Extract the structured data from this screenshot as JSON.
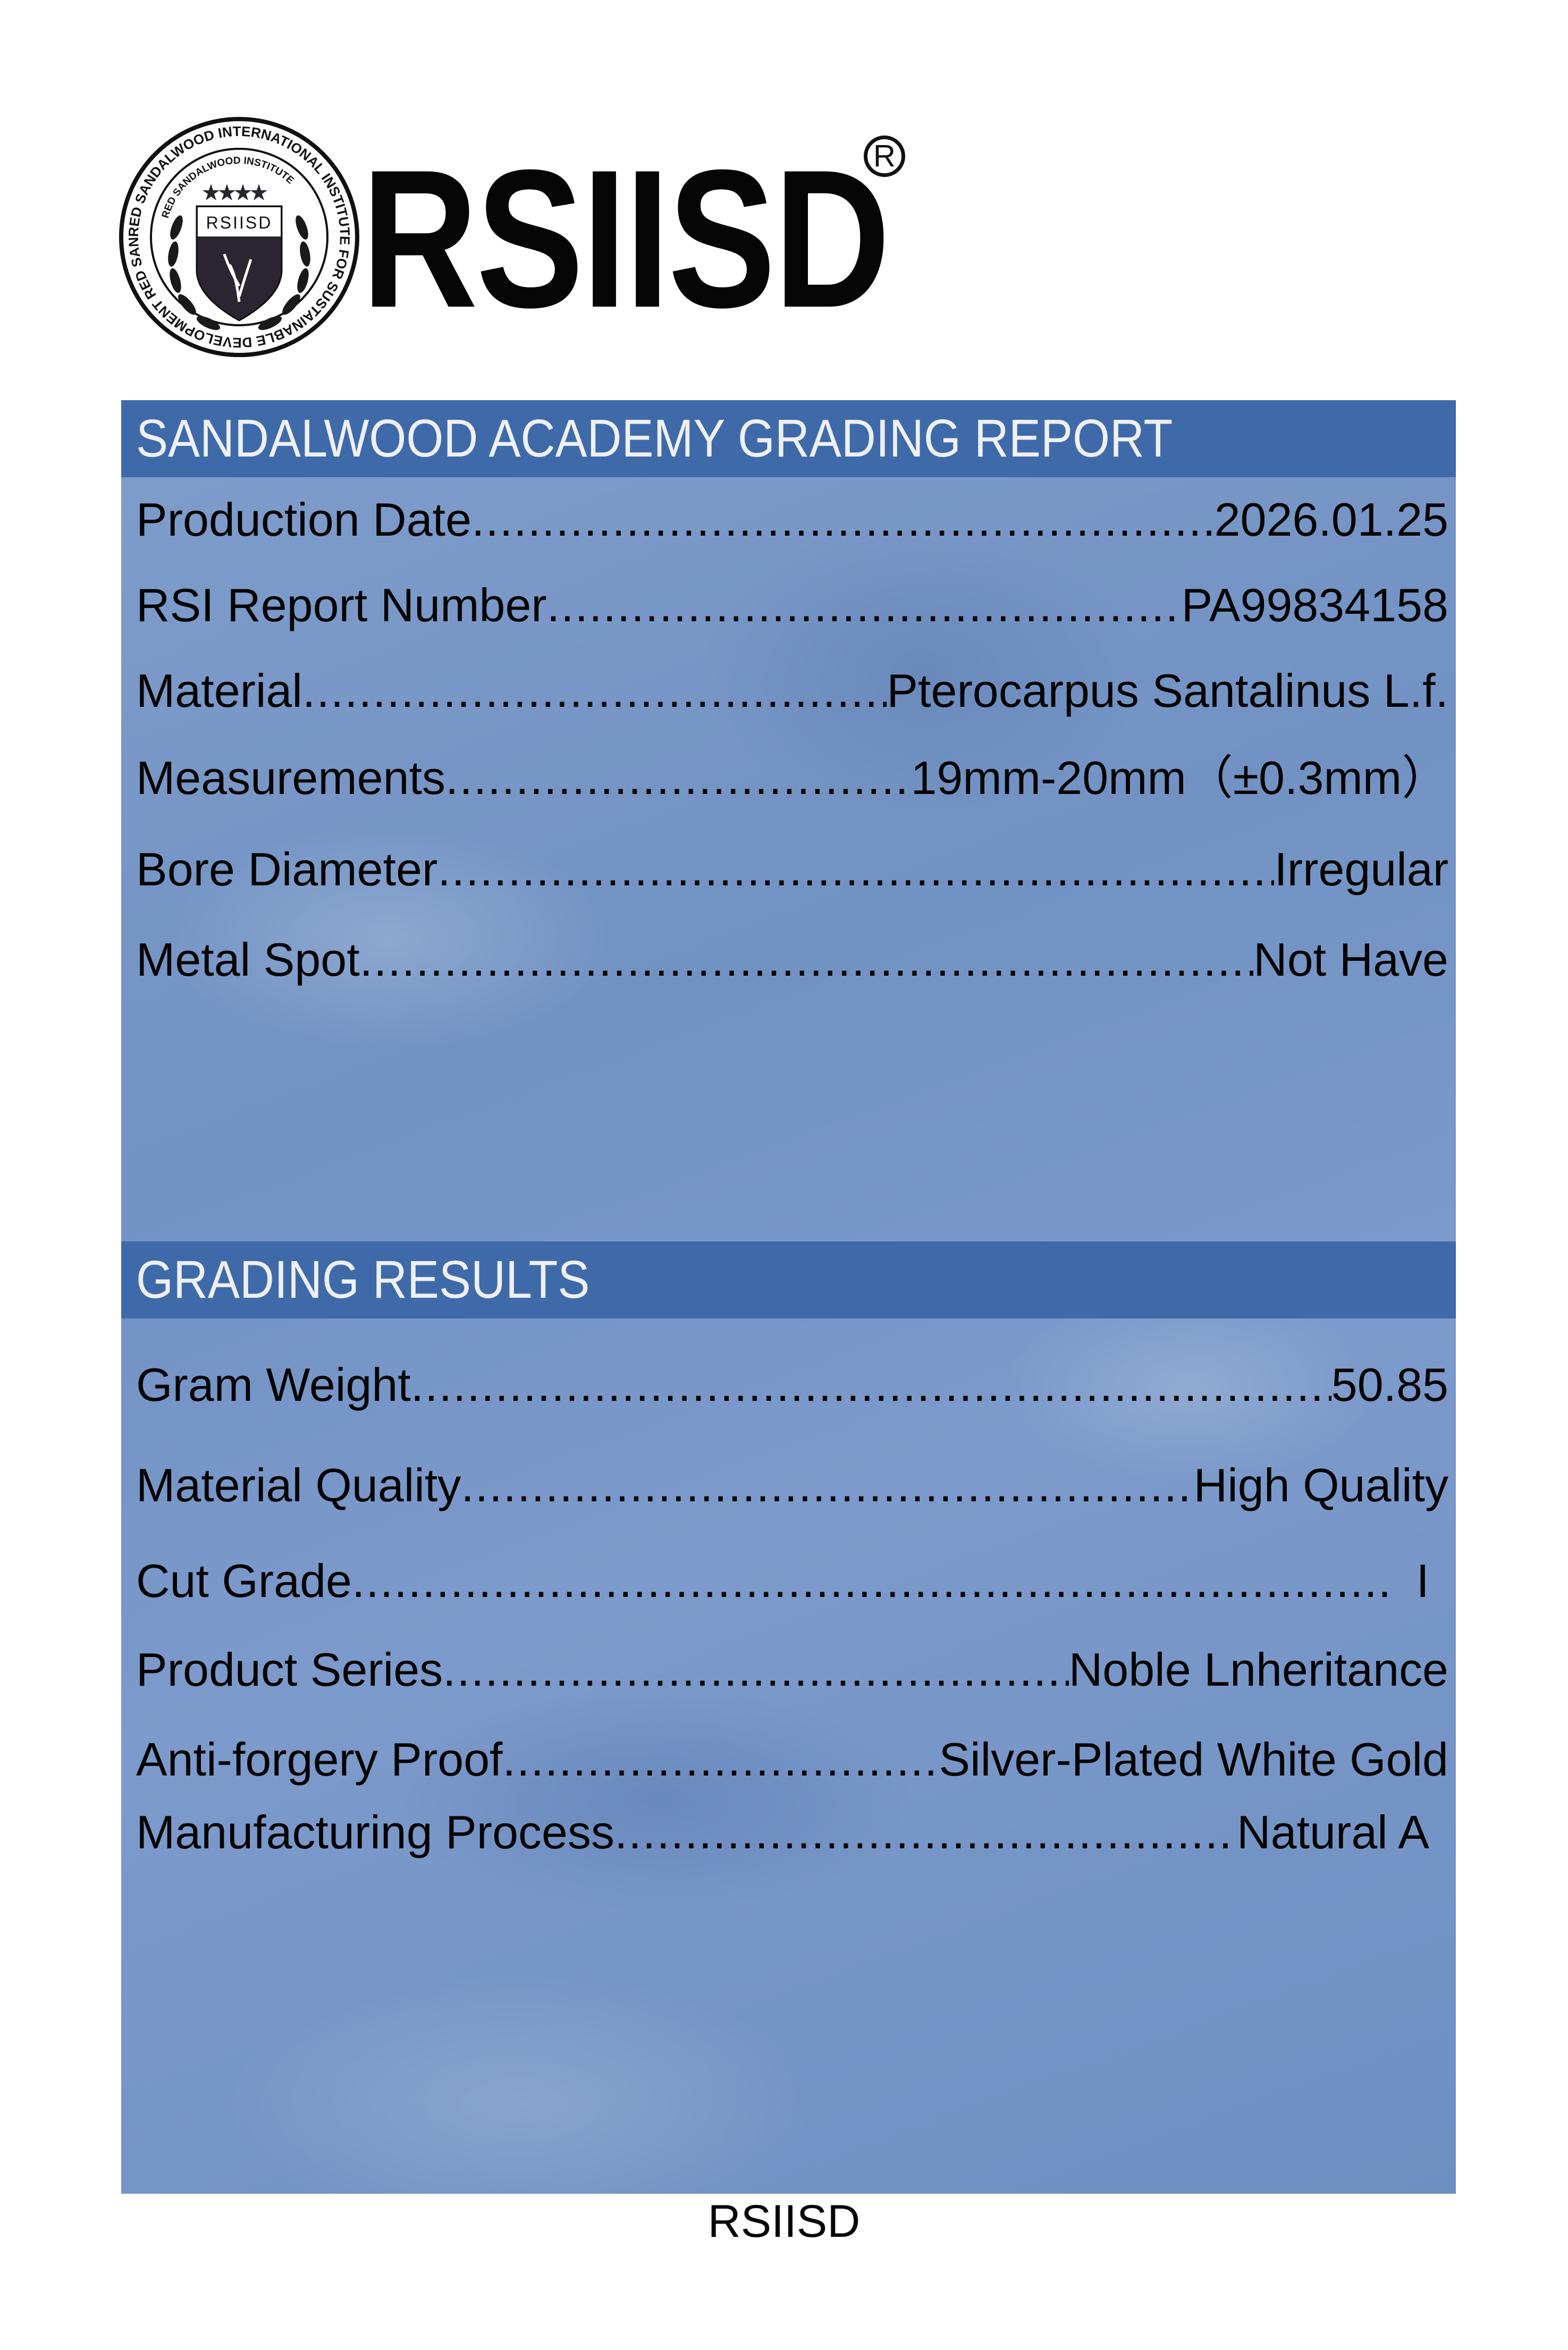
{
  "logo": {
    "seal_outer_text": "RED SANDALWOOD INTERNATIONAL INSTITUTE FOR SUSTAINABLE DEVELOPMENT RED SANDALWOOD INSTITUTE",
    "seal_inner_text": "RED SANDALWOOD INSTITUTE",
    "seal_shield_text": "RSIISD",
    "brand": "RSIISD",
    "registered_mark": "R"
  },
  "report": {
    "title": "SANDALWOOD ACADEMY GRADING REPORT",
    "rows": [
      {
        "label": "Production Date",
        "value": "2026.01.25"
      },
      {
        "label": "RSI Report Number",
        "value": "PA99834158"
      },
      {
        "label": "Material",
        "value": "Pterocarpus Santalinus L.f."
      },
      {
        "label": "Measurements",
        "value": "19mm-20mm（±0.3mm）"
      },
      {
        "label": "Bore Diameter",
        "value": "Irregular"
      },
      {
        "label": "Metal Spot",
        "value": "Not Have"
      }
    ]
  },
  "results": {
    "title": "GRADING RESULTS",
    "rows": [
      {
        "label": "Gram Weight",
        "value": "50.85"
      },
      {
        "label": "Material Quality",
        "value": "High Quality"
      },
      {
        "label": "Cut Grade",
        "value": "  I"
      },
      {
        "label": "Product Series",
        "value": "Noble Lnheritance"
      },
      {
        "label": "Anti-forgery Proof",
        "value": "Silver-Plated White Gold"
      },
      {
        "label": "Manufacturing Process",
        "value": "Natural A"
      }
    ]
  },
  "footer": "RSIISD",
  "colors": {
    "header": "#3f6aa9",
    "panel": "#7a98c8",
    "header_text": "#eef0f6"
  }
}
